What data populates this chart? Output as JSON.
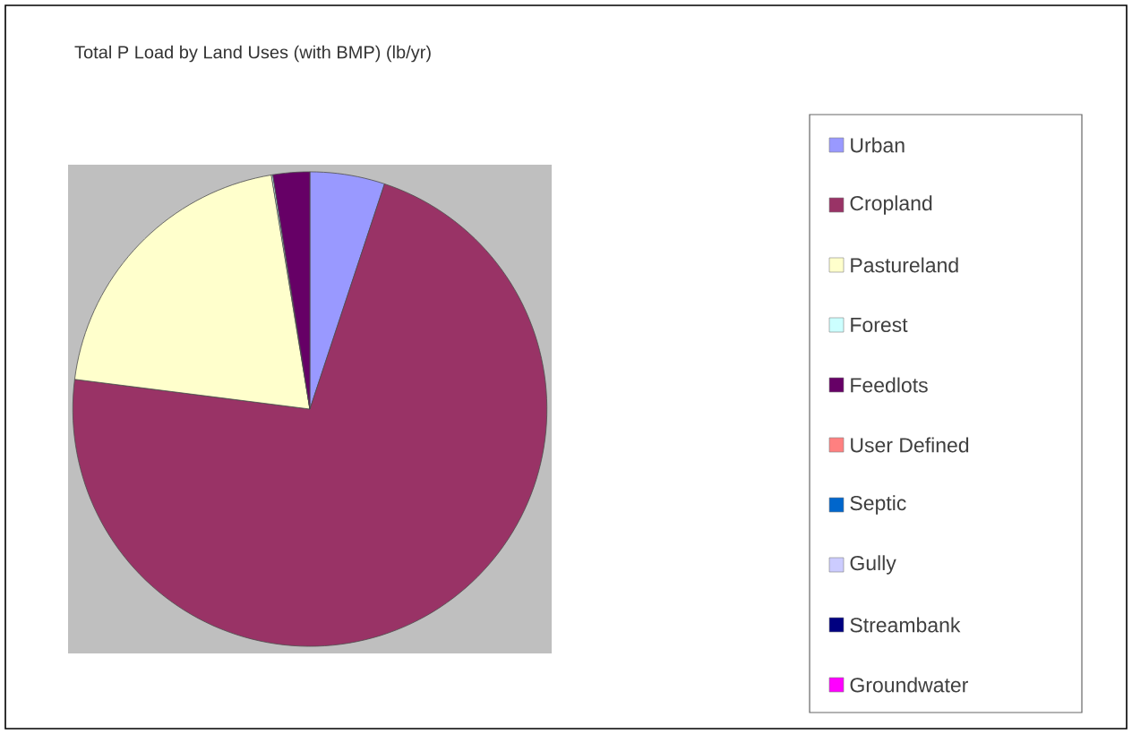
{
  "chart_data": {
    "type": "pie",
    "title": "Total P Load by Land Uses (with BMP) (lb/yr)",
    "categories": [
      "Urban",
      "Cropland",
      "Pastureland",
      "Forest",
      "Feedlots",
      "User Defined",
      "Septic",
      "Gully",
      "Streambank",
      "Groundwater"
    ],
    "values": [
      5.1,
      71.9,
      20.4,
      0.1,
      2.5,
      0,
      0,
      0,
      0,
      0
    ],
    "colors": [
      "#9999ff",
      "#993366",
      "#ffffcc",
      "#ccffff",
      "#660066",
      "#ff8080",
      "#0066cc",
      "#ccccff",
      "#000080",
      "#ff00ff"
    ],
    "legend": "right"
  }
}
